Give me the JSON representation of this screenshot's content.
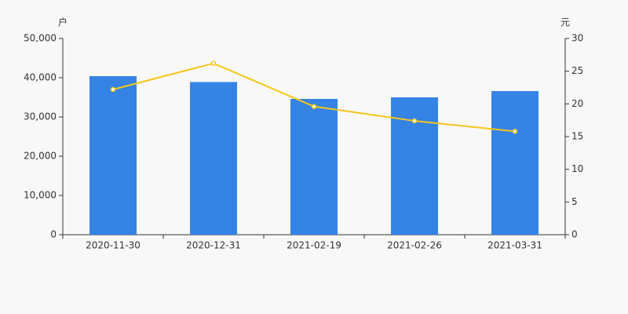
{
  "chart_data": {
    "type": "bar_line",
    "y_label": "户",
    "y2_label": "元",
    "categories": [
      "2020-11-30",
      "2020-12-31",
      "2021-02-19",
      "2021-02-26",
      "2021-03-31"
    ],
    "series": [
      {
        "type": "bar",
        "color": "#3583e4",
        "values": [
          40400,
          38900,
          34600,
          35000,
          36600
        ]
      },
      {
        "type": "line",
        "axis": "y2",
        "color": "#f5c518",
        "values": [
          22.2,
          26.2,
          19.6,
          17.4,
          15.8
        ]
      }
    ],
    "ylim": [
      0,
      50000
    ],
    "yticks": [
      0,
      {
        "value": 10000,
        "label": "10,000"
      },
      {
        "value": 20000,
        "label": "20,000"
      },
      {
        "value": 30000,
        "label": "30,000"
      },
      {
        "value": 40000,
        "label": "40,000"
      },
      {
        "value": 50000,
        "label": "50,000"
      }
    ],
    "y2lim": [
      0,
      30
    ],
    "y2ticks": [
      0,
      5,
      10,
      15,
      20,
      25,
      30
    ]
  }
}
